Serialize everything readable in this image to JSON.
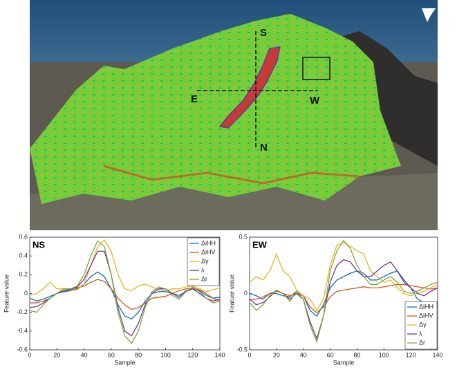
{
  "image_labels": [
    "S",
    "E",
    "W",
    "N"
  ],
  "chart_data": [
    {
      "type": "line",
      "title": "NS",
      "xlabel": "Sample",
      "ylabel": "Feature value",
      "x": [
        0,
        5,
        10,
        15,
        20,
        25,
        30,
        35,
        40,
        45,
        50,
        55,
        60,
        65,
        70,
        75,
        80,
        85,
        90,
        95,
        100,
        105,
        110,
        115,
        120,
        125,
        130,
        135,
        140
      ],
      "xlim": [
        0,
        140
      ],
      "xticks": [
        0,
        20,
        40,
        60,
        80,
        100,
        120,
        140
      ],
      "ylim": [
        -0.6,
        0.6
      ],
      "yticks": [
        -0.6,
        -0.4,
        -0.2,
        0,
        0.2,
        0.4,
        0.6
      ],
      "legend": "upper right",
      "series": [
        {
          "name": "ΔiHH",
          "color": "#0072BD",
          "values": [
            -0.05,
            -0.08,
            -0.06,
            -0.03,
            0,
            0.02,
            0.03,
            0.05,
            0.1,
            0.18,
            0.23,
            0.18,
            0.05,
            -0.12,
            -0.24,
            -0.27,
            -0.2,
            -0.08,
            0,
            0.02,
            0.02,
            0,
            -0.02,
            0.02,
            0.05,
            0.03,
            -0.02,
            -0.05,
            -0.04
          ]
        },
        {
          "name": "ΔiHV",
          "color": "#D95319",
          "values": [
            -0.1,
            -0.1,
            -0.08,
            -0.05,
            0,
            0.03,
            0.05,
            0.06,
            0.08,
            0.12,
            0.15,
            0.13,
            0.05,
            -0.05,
            -0.12,
            -0.17,
            -0.15,
            -0.1,
            -0.05,
            -0.04,
            -0.03,
            0,
            0.03,
            0.05,
            0.06,
            0.04,
            0,
            -0.05,
            -0.08
          ]
        },
        {
          "name": "Δγ",
          "color": "#EDB120",
          "values": [
            -0.02,
            0,
            0.05,
            0.12,
            0.05,
            0.05,
            0.03,
            0.04,
            0.1,
            0.3,
            0.5,
            0.57,
            0.45,
            0.2,
            0.05,
            0.03,
            0.08,
            0.1,
            0.07,
            0.04,
            0.03,
            0.05,
            0.05,
            0.07,
            0.08,
            0.05,
            0.02,
            0.04,
            0.06
          ]
        },
        {
          "name": "λ",
          "color": "#7E2F8E",
          "values": [
            -0.15,
            -0.14,
            -0.1,
            -0.05,
            0,
            0.03,
            0.04,
            0.07,
            0.15,
            0.3,
            0.45,
            0.45,
            0.2,
            -0.15,
            -0.4,
            -0.45,
            -0.32,
            -0.12,
            0,
            0.05,
            0.05,
            0,
            -0.04,
            0.03,
            0.05,
            0,
            -0.05,
            -0.08,
            -0.06
          ]
        },
        {
          "name": "Δr",
          "color": "#77AC30",
          "values": [
            -0.18,
            -0.2,
            -0.12,
            -0.05,
            0,
            0.05,
            0.05,
            0.08,
            0.2,
            0.4,
            0.56,
            0.5,
            0.2,
            -0.2,
            -0.45,
            -0.53,
            -0.4,
            -0.15,
            0.02,
            0.07,
            0.05,
            -0.02,
            -0.06,
            0.02,
            0.07,
            0.02,
            -0.05,
            -0.1,
            -0.08
          ]
        }
      ]
    },
    {
      "type": "line",
      "title": "EW",
      "xlabel": "Sample",
      "ylabel": "Feature value",
      "x": [
        0,
        5,
        10,
        15,
        20,
        25,
        30,
        35,
        40,
        45,
        50,
        55,
        60,
        65,
        70,
        75,
        80,
        85,
        90,
        95,
        100,
        105,
        110,
        115,
        120,
        125,
        130,
        135,
        140
      ],
      "xlim": [
        0,
        140
      ],
      "xticks": [
        0,
        20,
        40,
        60,
        80,
        100,
        120,
        140
      ],
      "ylim": [
        -0.5,
        0.5
      ],
      "yticks": [
        -0.5,
        0,
        0.5
      ],
      "legend": "lower right",
      "series": [
        {
          "name": "ΔiHH",
          "color": "#0072BD",
          "values": [
            0,
            -0.02,
            -0.05,
            0,
            0,
            -0.02,
            -0.03,
            0.02,
            -0.02,
            -0.15,
            -0.2,
            -0.1,
            0.05,
            0.12,
            0.15,
            0.18,
            0.2,
            0.18,
            0.12,
            0.12,
            0.15,
            0.18,
            0.2,
            0.12,
            0.05,
            -0.05,
            -0.08,
            -0.08,
            -0.08
          ]
        },
        {
          "name": "ΔiHV",
          "color": "#D95319",
          "values": [
            -0.05,
            -0.05,
            -0.03,
            0,
            0.02,
            0,
            -0.02,
            0,
            -0.02,
            -0.12,
            -0.17,
            -0.12,
            -0.03,
            0.02,
            0.03,
            0.04,
            0.05,
            0.06,
            0.05,
            0.05,
            0.06,
            0.07,
            0.08,
            0.08,
            0.07,
            0.06,
            0.05,
            0.04,
            0.05
          ]
        },
        {
          "name": "Δγ",
          "color": "#EDB120",
          "values": [
            0.1,
            0.15,
            0.12,
            0.2,
            0.35,
            0.2,
            0.15,
            0.03,
            -0.02,
            -0.05,
            -0.15,
            -0.05,
            0.25,
            0.43,
            0.45,
            0.42,
            0.38,
            0.35,
            0.2,
            0.15,
            0.1,
            0.12,
            0.05,
            0,
            -0.02,
            0,
            0.02,
            0.05,
            0.08
          ]
        },
        {
          "name": "λ",
          "color": "#7E2F8E",
          "values": [
            -0.05,
            -0.1,
            -0.08,
            -0.03,
            0.03,
            0,
            -0.05,
            0,
            -0.05,
            -0.25,
            -0.4,
            -0.2,
            0.1,
            0.25,
            0.3,
            0.28,
            0.2,
            0.15,
            0.15,
            0.2,
            0.25,
            0.28,
            0.2,
            0.1,
            0.05,
            0,
            -0.02,
            0.02,
            0.05
          ]
        },
        {
          "name": "Δr",
          "color": "#77AC30",
          "values": [
            -0.08,
            -0.15,
            -0.1,
            -0.02,
            0.03,
            0,
            -0.07,
            0.02,
            -0.05,
            -0.28,
            -0.43,
            -0.2,
            0.2,
            0.38,
            0.47,
            0.4,
            0.25,
            0.15,
            0.08,
            0.08,
            0.12,
            0.15,
            0.1,
            0.02,
            0,
            0.02,
            0.05,
            0.08,
            0.1
          ]
        }
      ]
    }
  ]
}
